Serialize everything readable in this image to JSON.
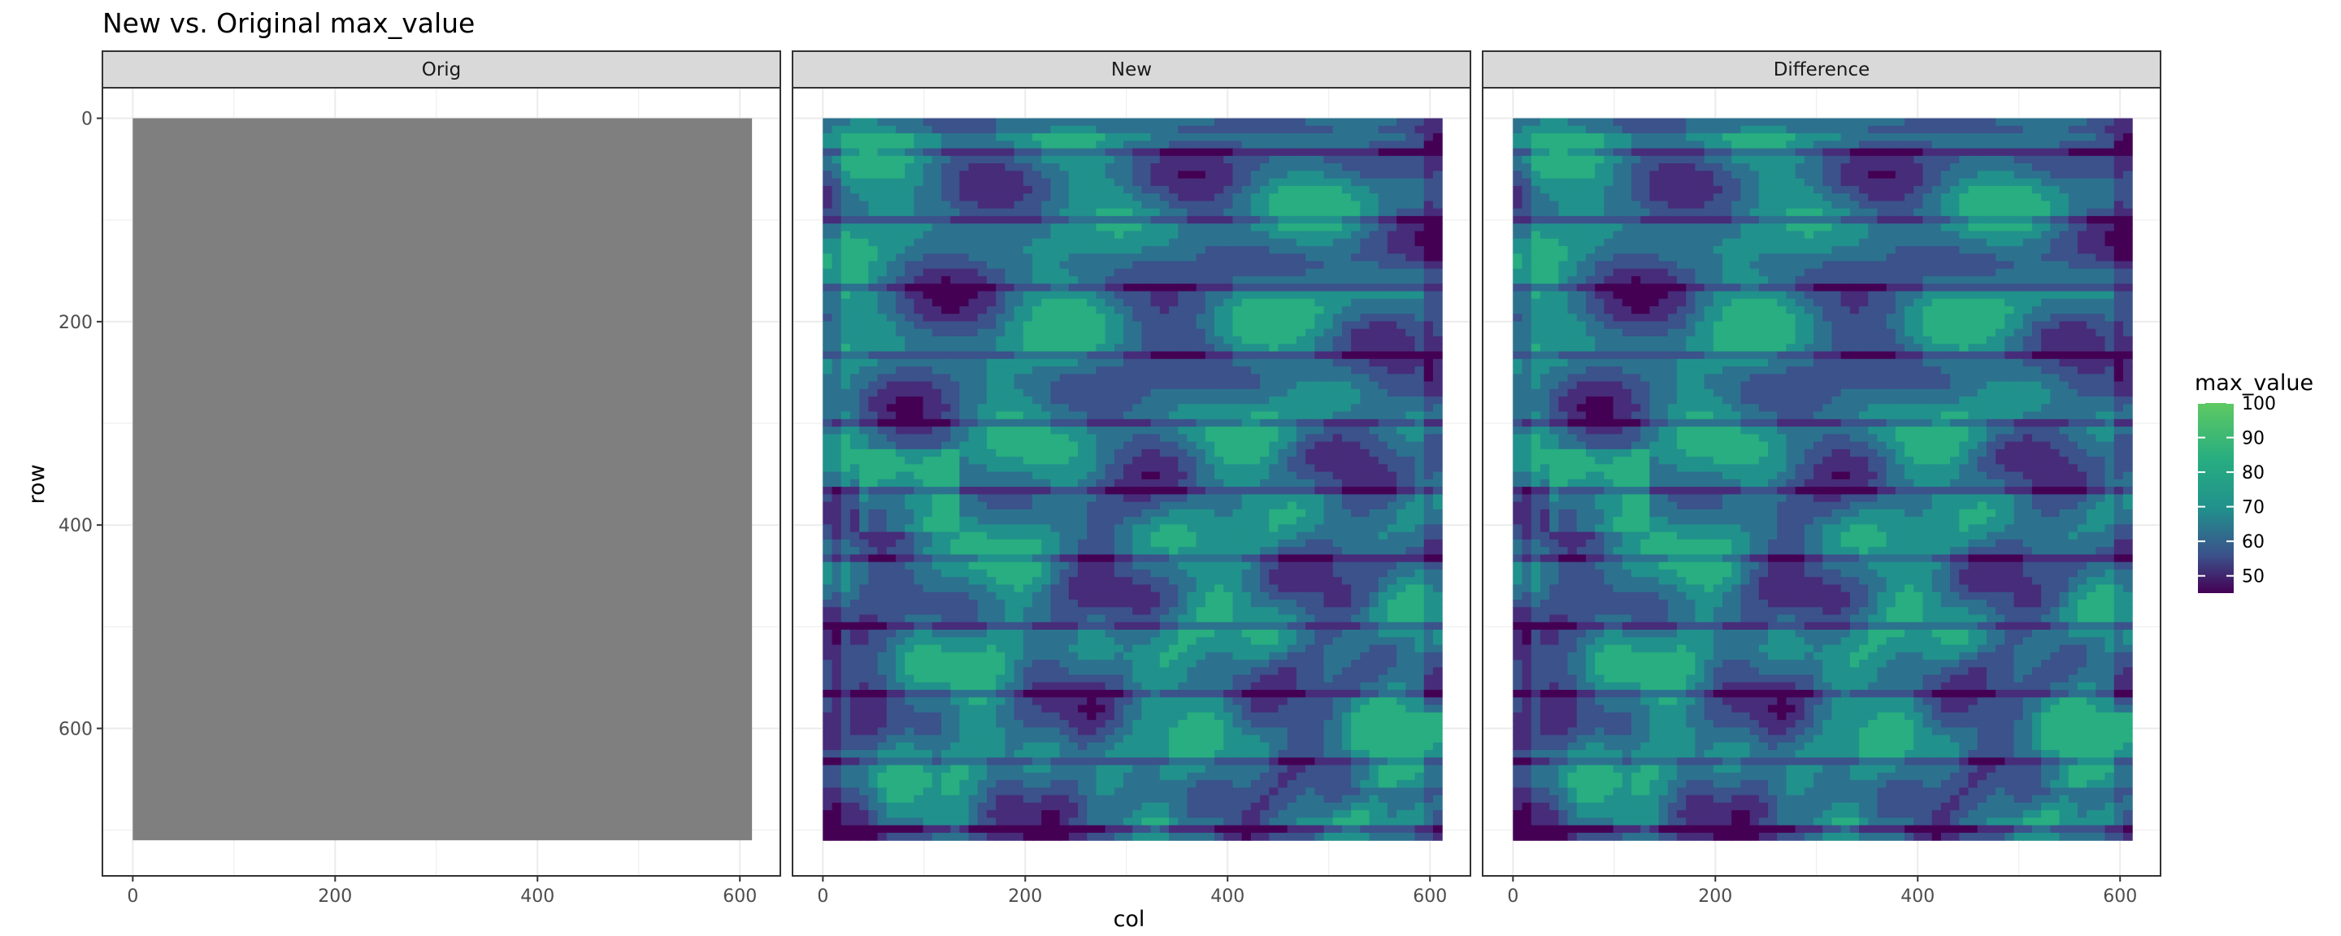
{
  "chart_data": {
    "type": "heatmap",
    "title": "New vs. Original max_value",
    "xlabel": "col",
    "ylabel": "row",
    "x_ticks": [
      0,
      200,
      400,
      600
    ],
    "y_ticks": [
      0,
      200,
      400,
      600
    ],
    "xlim": [
      -30,
      640
    ],
    "ylim": [
      -30,
      745
    ],
    "y_reversed": true,
    "grid": true,
    "raster_extent": {
      "col": [
        0,
        612
      ],
      "row": [
        0,
        710
      ]
    },
    "facets": [
      {
        "label": "Orig",
        "fill": "#7f7f7f",
        "note": ""
      },
      {
        "label": "New",
        "fill": "viridis"
      },
      {
        "label": "Difference",
        "fill": "viridis"
      }
    ],
    "legend": {
      "title": "max_value",
      "position": "right",
      "ticks": [
        50,
        60,
        70,
        80,
        90,
        100
      ],
      "range": [
        45,
        100
      ],
      "colormap": "viridis"
    },
    "colors": {
      "panel_strip": "#d9d9d9",
      "grid": "#ebebeb",
      "border": "#333333",
      "na_fill": "#7f7f7f"
    }
  }
}
